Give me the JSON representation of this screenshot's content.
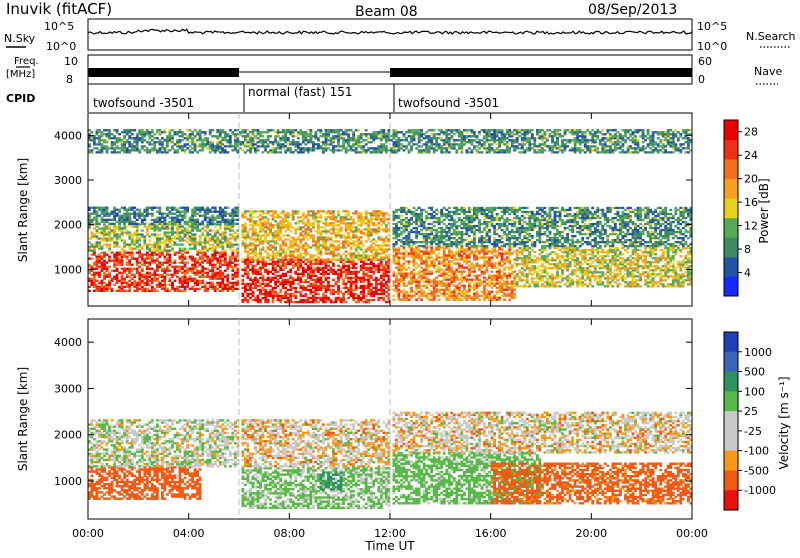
{
  "header": {
    "station": "Inuvik (fitACF)",
    "beam": "Beam 08",
    "date": "08/Sep/2013"
  },
  "summary": {
    "nsky_label": "N.Sky",
    "nsearch_label": "N.Search",
    "freq_label": "Freq.",
    "freq_unit": "[MHz]",
    "nave_label": "Nave",
    "cpid_label": "CPID",
    "noise_ticks": [
      "10^5",
      "10^0"
    ],
    "freq_ticks": [
      "10",
      "8"
    ],
    "nave_ticks": [
      "60",
      "0"
    ]
  },
  "cpid_segments": [
    {
      "label": "twofsound -3501",
      "start": 0,
      "end": 6
    },
    {
      "label": "normal (fast) 151",
      "start": 6,
      "end": 12
    },
    {
      "label": "twofsound -3501",
      "start": 12,
      "end": 24
    }
  ],
  "colors": {
    "power_scale": [
      "#1428ff",
      "#2452a6",
      "#3d8a60",
      "#58a85a",
      "#e8d020",
      "#f5a020",
      "#f07020",
      "#ee3018",
      "#e80000"
    ],
    "velocity_scale": [
      "#e81010",
      "#f05a14",
      "#f59a18",
      "#c9c9c9",
      "#c9c9c9",
      "#58b848",
      "#2f9060",
      "#3a64b8",
      "#2040b8"
    ]
  },
  "chart_data": [
    {
      "type": "heatmap",
      "name": "power",
      "xlabel": "",
      "ylabel": "Slant Range [km]",
      "xlim": [
        0,
        24
      ],
      "ylim": [
        180,
        4500
      ],
      "x_ticks": [
        "00:00",
        "04:00",
        "08:00",
        "12:00",
        "16:00",
        "20:00",
        "00:00"
      ],
      "y_ticks": [
        1000,
        2000,
        3000,
        4000
      ],
      "colorbar": {
        "label": "Power [dB]",
        "ticks": [
          4,
          8,
          12,
          16,
          20,
          24,
          28
        ],
        "range": [
          0,
          30
        ]
      },
      "regions": [
        {
          "t0": 0.0,
          "t1": 5.9,
          "r0": 500,
          "r1": 1400,
          "mean": 25
        },
        {
          "t0": 0.0,
          "t1": 5.9,
          "r0": 1400,
          "r1": 2000,
          "mean": 13
        },
        {
          "t0": 0.0,
          "t1": 5.9,
          "r0": 2000,
          "r1": 2400,
          "mean": 8
        },
        {
          "t0": 6.1,
          "t1": 11.9,
          "r0": 250,
          "r1": 1200,
          "mean": 26
        },
        {
          "t0": 6.1,
          "t1": 11.9,
          "r0": 1200,
          "r1": 2300,
          "mean": 17
        },
        {
          "t0": 12.1,
          "t1": 17.0,
          "r0": 300,
          "r1": 1500,
          "mean": 20
        },
        {
          "t0": 12.1,
          "t1": 24.0,
          "r0": 1500,
          "r1": 2400,
          "mean": 9
        },
        {
          "t0": 17.0,
          "t1": 24.0,
          "r0": 600,
          "r1": 1500,
          "mean": 15
        },
        {
          "t0": 0.0,
          "t1": 24.0,
          "r0": 3600,
          "r1": 4100,
          "mean": 9
        }
      ]
    },
    {
      "type": "heatmap",
      "name": "velocity",
      "xlabel": "Time UT",
      "ylabel": "Slant Range [km]",
      "xlim": [
        0,
        24
      ],
      "ylim": [
        180,
        4500
      ],
      "x_ticks": [
        "00:00",
        "04:00",
        "08:00",
        "12:00",
        "16:00",
        "20:00",
        "00:00"
      ],
      "y_ticks": [
        1000,
        2000,
        3000,
        4000
      ],
      "colorbar": {
        "label": "Velocity [m s⁻¹]",
        "ticks": [
          1000,
          500,
          100,
          25,
          -25,
          -100,
          -500,
          -1000
        ]
      },
      "regions": [
        {
          "t0": 0.0,
          "t1": 4.5,
          "r0": 600,
          "r1": 1300,
          "mean": -300
        },
        {
          "t0": 0.0,
          "t1": 5.9,
          "r0": 1300,
          "r1": 2300,
          "mean": 60
        },
        {
          "t0": 6.1,
          "t1": 11.9,
          "r0": 400,
          "r1": 1300,
          "mean": 150
        },
        {
          "t0": 9.2,
          "t1": 10.0,
          "r0": 800,
          "r1": 1200,
          "mean": 800
        },
        {
          "t0": 6.1,
          "t1": 11.9,
          "r0": 1300,
          "r1": 2300,
          "mean": 0
        },
        {
          "t0": 12.1,
          "t1": 18.0,
          "r0": 500,
          "r1": 1600,
          "mean": 200
        },
        {
          "t0": 12.1,
          "t1": 24.0,
          "r0": 1600,
          "r1": 2500,
          "mean": 0
        },
        {
          "t0": 16.0,
          "t1": 24.0,
          "r0": 500,
          "r1": 1400,
          "mean": -200
        }
      ]
    }
  ]
}
